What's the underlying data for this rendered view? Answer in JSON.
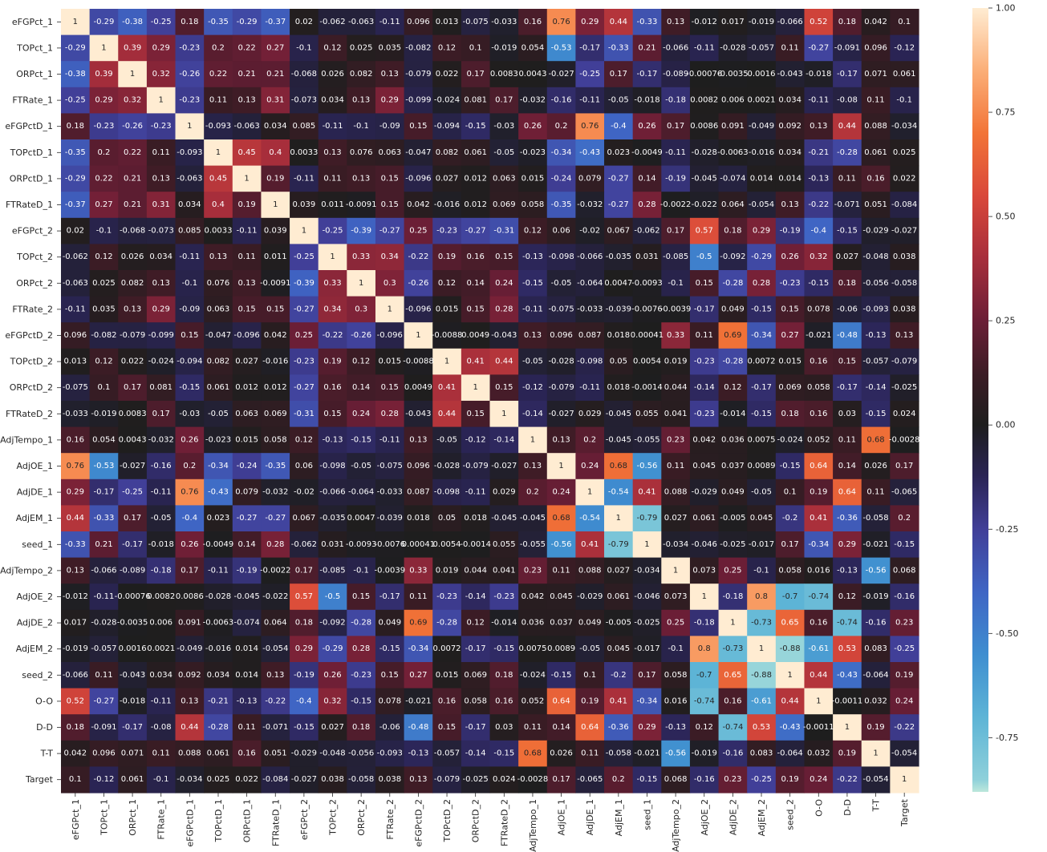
{
  "chart_data": {
    "type": "heatmap",
    "title": "",
    "xlabel": "",
    "ylabel": "",
    "labels": [
      "eFGPct_1",
      "TOPct_1",
      "ORPct_1",
      "FTRate_1",
      "eFGPctD_1",
      "TOPctD_1",
      "ORPctD_1",
      "FTRateD_1",
      "eFGPct_2",
      "TOPct_2",
      "ORPct_2",
      "FTRate_2",
      "eFGPctD_2",
      "TOPctD_2",
      "ORPctD_2",
      "FTRateD_2",
      "AdjTempo_1",
      "AdjOE_1",
      "AdjDE_1",
      "AdjEM_1",
      "seed_1",
      "AdjTempo_2",
      "AdjOE_2",
      "AdjDE_2",
      "AdjEM_2",
      "seed_2",
      "O-O",
      "D-D",
      "T-T",
      "Target"
    ],
    "matrix": [
      [
        "1",
        "-0.29",
        "-0.38",
        "-0.25",
        "0.18",
        "-0.35",
        "-0.29",
        "-0.37",
        "0.02",
        "-0.062",
        "-0.063",
        "-0.11",
        "0.096",
        "0.013",
        "-0.075",
        "-0.033",
        "0.16",
        "0.76",
        "0.29",
        "0.44",
        "-0.33",
        "0.13",
        "-0.012",
        "0.017",
        "-0.019",
        "-0.066",
        "0.52",
        "0.18",
        "0.042",
        "0.1"
      ],
      [
        "-0.29",
        "1",
        "0.39",
        "0.29",
        "-0.23",
        "0.2",
        "0.22",
        "0.27",
        "-0.1",
        "0.12",
        "0.025",
        "0.035",
        "-0.082",
        "0.12",
        "0.1",
        "-0.019",
        "0.054",
        "-0.53",
        "-0.17",
        "-0.33",
        "0.21",
        "-0.066",
        "-0.11",
        "-0.028",
        "-0.057",
        "0.11",
        "-0.27",
        "-0.091",
        "0.096",
        "-0.12"
      ],
      [
        "-0.38",
        "0.39",
        "1",
        "0.32",
        "-0.26",
        "0.22",
        "0.21",
        "0.21",
        "-0.068",
        "0.026",
        "0.082",
        "0.13",
        "-0.079",
        "0.022",
        "0.17",
        "0.0083",
        "0.0043",
        "-0.027",
        "-0.25",
        "0.17",
        "-0.17",
        "-0.089",
        "-0.00076",
        "-0.0035",
        "0.0016",
        "-0.043",
        "-0.018",
        "-0.17",
        "0.071",
        "0.061"
      ],
      [
        "-0.25",
        "0.29",
        "0.32",
        "1",
        "-0.23",
        "0.11",
        "0.13",
        "0.31",
        "-0.073",
        "0.034",
        "0.13",
        "0.29",
        "-0.099",
        "-0.024",
        "0.081",
        "0.17",
        "-0.032",
        "-0.16",
        "-0.11",
        "-0.05",
        "-0.018",
        "-0.18",
        "0.0082",
        "0.006",
        "0.0021",
        "0.034",
        "-0.11",
        "-0.08",
        "0.11",
        "-0.1"
      ],
      [
        "0.18",
        "-0.23",
        "-0.26",
        "-0.23",
        "1",
        "-0.093",
        "-0.063",
        "0.034",
        "0.085",
        "-0.11",
        "-0.1",
        "-0.09",
        "0.15",
        "-0.094",
        "-0.15",
        "-0.03",
        "0.26",
        "0.2",
        "0.76",
        "-0.4",
        "0.26",
        "0.17",
        "0.0086",
        "0.091",
        "-0.049",
        "0.092",
        "0.13",
        "0.44",
        "0.088",
        "-0.034"
      ],
      [
        "-0.35",
        "0.2",
        "0.22",
        "0.11",
        "-0.093",
        "1",
        "0.45",
        "0.4",
        "0.0033",
        "0.13",
        "0.076",
        "0.063",
        "-0.047",
        "0.082",
        "0.061",
        "-0.05",
        "-0.023",
        "-0.34",
        "-0.43",
        "0.023",
        "-0.0049",
        "-0.11",
        "-0.028",
        "-0.0063",
        "-0.016",
        "0.034",
        "-0.21",
        "-0.28",
        "0.061",
        "0.025"
      ],
      [
        "-0.29",
        "0.22",
        "0.21",
        "0.13",
        "-0.063",
        "0.45",
        "1",
        "0.19",
        "-0.11",
        "0.11",
        "0.13",
        "0.15",
        "-0.096",
        "0.027",
        "0.012",
        "0.063",
        "0.015",
        "-0.24",
        "0.079",
        "-0.27",
        "0.14",
        "-0.19",
        "-0.045",
        "-0.074",
        "0.014",
        "0.014",
        "-0.13",
        "0.11",
        "0.16",
        "0.022"
      ],
      [
        "-0.37",
        "0.27",
        "0.21",
        "0.31",
        "0.034",
        "0.4",
        "0.19",
        "1",
        "0.039",
        "0.011",
        "-0.0091",
        "0.15",
        "0.042",
        "-0.016",
        "0.012",
        "0.069",
        "0.058",
        "-0.35",
        "-0.032",
        "-0.27",
        "0.28",
        "-0.0022",
        "-0.022",
        "0.064",
        "-0.054",
        "0.13",
        "-0.22",
        "-0.071",
        "0.051",
        "-0.084"
      ],
      [
        "0.02",
        "-0.1",
        "-0.068",
        "-0.073",
        "0.085",
        "0.0033",
        "-0.11",
        "0.039",
        "1",
        "-0.25",
        "-0.39",
        "-0.27",
        "0.25",
        "-0.23",
        "-0.27",
        "-0.31",
        "0.12",
        "0.06",
        "-0.02",
        "0.067",
        "-0.062",
        "0.17",
        "0.57",
        "0.18",
        "0.29",
        "-0.19",
        "-0.4",
        "-0.15",
        "-0.029",
        "-0.027"
      ],
      [
        "-0.062",
        "0.12",
        "0.026",
        "0.034",
        "-0.11",
        "0.13",
        "0.11",
        "0.011",
        "-0.25",
        "1",
        "0.33",
        "0.34",
        "-0.22",
        "0.19",
        "0.16",
        "0.15",
        "-0.13",
        "-0.098",
        "-0.066",
        "-0.035",
        "0.031",
        "-0.085",
        "-0.5",
        "-0.092",
        "-0.29",
        "0.26",
        "0.32",
        "0.027",
        "-0.048",
        "0.038"
      ],
      [
        "-0.063",
        "0.025",
        "0.082",
        "0.13",
        "-0.1",
        "0.076",
        "0.13",
        "-0.0091",
        "-0.39",
        "0.33",
        "1",
        "0.3",
        "-0.26",
        "0.12",
        "0.14",
        "0.24",
        "-0.15",
        "-0.05",
        "-0.064",
        "0.0047",
        "-0.0093",
        "-0.1",
        "0.15",
        "-0.28",
        "0.28",
        "-0.23",
        "-0.15",
        "0.18",
        "-0.056",
        "-0.058"
      ],
      [
        "-0.11",
        "0.035",
        "0.13",
        "0.29",
        "-0.09",
        "0.063",
        "0.15",
        "0.15",
        "-0.27",
        "0.34",
        "0.3",
        "1",
        "-0.096",
        "0.015",
        "0.15",
        "0.28",
        "-0.11",
        "-0.075",
        "-0.033",
        "-0.039",
        "-0.0076",
        "-0.0039",
        "-0.17",
        "0.049",
        "-0.15",
        "0.15",
        "0.078",
        "-0.06",
        "-0.093",
        "0.038"
      ],
      [
        "0.096",
        "-0.082",
        "-0.079",
        "-0.099",
        "0.15",
        "-0.047",
        "-0.096",
        "0.042",
        "0.25",
        "-0.22",
        "-0.26",
        "-0.096",
        "1",
        "-0.0088",
        "0.0049",
        "-0.043",
        "0.13",
        "0.096",
        "0.087",
        "0.018",
        "0.00041",
        "0.33",
        "0.11",
        "0.69",
        "-0.34",
        "0.27",
        "-0.021",
        "-0.48",
        "-0.13",
        "0.13"
      ],
      [
        "0.013",
        "0.12",
        "0.022",
        "-0.024",
        "-0.094",
        "0.082",
        "0.027",
        "-0.016",
        "-0.23",
        "0.19",
        "0.12",
        "0.015",
        "-0.0088",
        "1",
        "0.41",
        "0.44",
        "-0.05",
        "-0.028",
        "-0.098",
        "0.05",
        "0.0054",
        "0.019",
        "-0.23",
        "-0.28",
        "0.0072",
        "0.015",
        "0.16",
        "0.15",
        "-0.057",
        "-0.079"
      ],
      [
        "-0.075",
        "0.1",
        "0.17",
        "0.081",
        "-0.15",
        "0.061",
        "0.012",
        "0.012",
        "-0.27",
        "0.16",
        "0.14",
        "0.15",
        "0.0049",
        "0.41",
        "1",
        "0.15",
        "-0.12",
        "-0.079",
        "-0.11",
        "0.018",
        "-0.0014",
        "0.044",
        "-0.14",
        "0.12",
        "-0.17",
        "0.069",
        "0.058",
        "-0.17",
        "-0.14",
        "-0.025"
      ],
      [
        "-0.033",
        "-0.019",
        "0.0083",
        "0.17",
        "-0.03",
        "-0.05",
        "0.063",
        "0.069",
        "-0.31",
        "0.15",
        "0.24",
        "0.28",
        "-0.043",
        "0.44",
        "0.15",
        "1",
        "-0.14",
        "-0.027",
        "0.029",
        "-0.045",
        "0.055",
        "0.041",
        "-0.23",
        "-0.014",
        "-0.15",
        "0.18",
        "0.16",
        "0.03",
        "-0.15",
        "0.024"
      ],
      [
        "0.16",
        "0.054",
        "0.0043",
        "-0.032",
        "0.26",
        "-0.023",
        "0.015",
        "0.058",
        "0.12",
        "-0.13",
        "-0.15",
        "-0.11",
        "0.13",
        "-0.05",
        "-0.12",
        "-0.14",
        "1",
        "0.13",
        "0.2",
        "-0.045",
        "-0.055",
        "0.23",
        "0.042",
        "0.036",
        "0.0075",
        "-0.024",
        "0.052",
        "0.11",
        "0.68",
        "-0.0028"
      ],
      [
        "0.76",
        "-0.53",
        "-0.027",
        "-0.16",
        "0.2",
        "-0.34",
        "-0.24",
        "-0.35",
        "0.06",
        "-0.098",
        "-0.05",
        "-0.075",
        "0.096",
        "-0.028",
        "-0.079",
        "-0.027",
        "0.13",
        "1",
        "0.24",
        "0.68",
        "-0.56",
        "0.11",
        "0.045",
        "0.037",
        "0.0089",
        "-0.15",
        "0.64",
        "0.14",
        "0.026",
        "0.17"
      ],
      [
        "0.29",
        "-0.17",
        "-0.25",
        "-0.11",
        "0.76",
        "-0.43",
        "0.079",
        "-0.032",
        "-0.02",
        "-0.066",
        "-0.064",
        "-0.033",
        "0.087",
        "-0.098",
        "-0.11",
        "0.029",
        "0.2",
        "0.24",
        "1",
        "-0.54",
        "0.41",
        "0.088",
        "-0.029",
        "0.049",
        "-0.05",
        "0.1",
        "0.19",
        "0.64",
        "0.11",
        "-0.065"
      ],
      [
        "0.44",
        "-0.33",
        "0.17",
        "-0.05",
        "-0.4",
        "0.023",
        "-0.27",
        "-0.27",
        "0.067",
        "-0.035",
        "0.0047",
        "-0.039",
        "0.018",
        "0.05",
        "0.018",
        "-0.045",
        "-0.045",
        "0.68",
        "-0.54",
        "1",
        "-0.79",
        "0.027",
        "0.061",
        "-0.005",
        "0.045",
        "-0.2",
        "0.41",
        "-0.36",
        "-0.058",
        "0.2"
      ],
      [
        "-0.33",
        "0.21",
        "-0.17",
        "-0.018",
        "0.26",
        "-0.0049",
        "0.14",
        "0.28",
        "-0.062",
        "0.031",
        "-0.0093",
        "-0.0076",
        "0.00041",
        "0.0054",
        "-0.0014",
        "0.055",
        "-0.055",
        "-0.56",
        "0.41",
        "-0.79",
        "1",
        "-0.034",
        "-0.046",
        "-0.025",
        "-0.017",
        "0.17",
        "-0.34",
        "0.29",
        "-0.021",
        "-0.15"
      ],
      [
        "0.13",
        "-0.066",
        "-0.089",
        "-0.18",
        "0.17",
        "-0.11",
        "-0.19",
        "-0.0022",
        "0.17",
        "-0.085",
        "-0.1",
        "-0.0039",
        "0.33",
        "0.019",
        "0.044",
        "0.041",
        "0.23",
        "0.11",
        "0.088",
        "0.027",
        "-0.034",
        "1",
        "0.073",
        "0.25",
        "-0.1",
        "0.058",
        "0.016",
        "-0.13",
        "-0.56",
        "0.068"
      ],
      [
        "-0.012",
        "-0.11",
        "-0.00076",
        "0.0082",
        "0.0086",
        "-0.028",
        "-0.045",
        "-0.022",
        "0.57",
        "-0.5",
        "0.15",
        "-0.17",
        "0.11",
        "-0.23",
        "-0.14",
        "-0.23",
        "0.042",
        "0.045",
        "-0.029",
        "0.061",
        "-0.046",
        "0.073",
        "1",
        "-0.18",
        "0.8",
        "-0.7",
        "-0.74",
        "0.12",
        "-0.019",
        "-0.16"
      ],
      [
        "0.017",
        "-0.028",
        "-0.0035",
        "0.006",
        "0.091",
        "-0.0063",
        "-0.074",
        "0.064",
        "0.18",
        "-0.092",
        "-0.28",
        "0.049",
        "0.69",
        "-0.28",
        "0.12",
        "-0.014",
        "0.036",
        "0.037",
        "0.049",
        "-0.005",
        "-0.025",
        "0.25",
        "-0.18",
        "1",
        "-0.73",
        "0.65",
        "0.16",
        "-0.74",
        "-0.16",
        "0.23"
      ],
      [
        "-0.019",
        "-0.057",
        "0.0016",
        "0.0021",
        "-0.049",
        "-0.016",
        "0.014",
        "-0.054",
        "0.29",
        "-0.29",
        "0.28",
        "-0.15",
        "-0.34",
        "0.0072",
        "-0.17",
        "-0.15",
        "0.0075",
        "0.0089",
        "-0.05",
        "0.045",
        "-0.017",
        "-0.1",
        "0.8",
        "-0.73",
        "1",
        "-0.88",
        "-0.61",
        "0.53",
        "0.083",
        "-0.25"
      ],
      [
        "-0.066",
        "0.11",
        "-0.043",
        "0.034",
        "0.092",
        "0.034",
        "0.014",
        "0.13",
        "-0.19",
        "0.26",
        "-0.23",
        "0.15",
        "0.27",
        "0.015",
        "0.069",
        "0.18",
        "-0.024",
        "-0.15",
        "0.1",
        "-0.2",
        "0.17",
        "0.058",
        "-0.7",
        "0.65",
        "-0.88",
        "1",
        "0.44",
        "-0.43",
        "-0.064",
        "0.19"
      ],
      [
        "0.52",
        "-0.27",
        "-0.018",
        "-0.11",
        "0.13",
        "-0.21",
        "-0.13",
        "-0.22",
        "-0.4",
        "0.32",
        "-0.15",
        "0.078",
        "-0.021",
        "0.16",
        "0.058",
        "0.16",
        "0.052",
        "0.64",
        "0.19",
        "0.41",
        "-0.34",
        "0.016",
        "-0.74",
        "0.16",
        "-0.61",
        "0.44",
        "1",
        "-0.0011",
        "0.032",
        "0.24"
      ],
      [
        "0.18",
        "-0.091",
        "-0.17",
        "-0.08",
        "0.44",
        "-0.28",
        "0.11",
        "-0.071",
        "-0.15",
        "0.027",
        "0.18",
        "-0.06",
        "-0.48",
        "0.15",
        "-0.17",
        "0.03",
        "0.11",
        "0.14",
        "0.64",
        "-0.36",
        "0.29",
        "-0.13",
        "0.12",
        "-0.74",
        "0.53",
        "-0.43",
        "-0.0011",
        "1",
        "0.19",
        "-0.22"
      ],
      [
        "0.042",
        "0.096",
        "0.071",
        "0.11",
        "0.088",
        "0.061",
        "0.16",
        "0.051",
        "-0.029",
        "-0.048",
        "-0.056",
        "-0.093",
        "-0.13",
        "-0.057",
        "-0.14",
        "-0.15",
        "0.68",
        "0.026",
        "0.11",
        "-0.058",
        "-0.021",
        "-0.56",
        "-0.019",
        "-0.16",
        "0.083",
        "-0.064",
        "0.032",
        "0.19",
        "1",
        "-0.054"
      ],
      [
        "0.1",
        "-0.12",
        "0.061",
        "-0.1",
        "-0.034",
        "0.025",
        "0.022",
        "-0.084",
        "-0.027",
        "0.038",
        "-0.058",
        "0.038",
        "0.13",
        "-0.079",
        "-0.025",
        "0.024",
        "-0.0028",
        "0.17",
        "-0.065",
        "0.2",
        "-0.15",
        "0.068",
        "-0.16",
        "0.23",
        "-0.25",
        "0.19",
        "0.24",
        "-0.22",
        "-0.054",
        "1"
      ]
    ],
    "vmin": -0.88,
    "vmax": 1.0,
    "colormap": "icefire",
    "colorbar_ticks": [
      "1.00",
      "0.75",
      "0.50",
      "0.25",
      "0.00",
      "-0.25",
      "-0.50",
      "-0.75"
    ],
    "colorbar_tick_values": [
      1.0,
      0.75,
      0.5,
      0.25,
      0.0,
      -0.25,
      -0.5,
      -0.75
    ],
    "colormap_stops": [
      {
        "v": -1.0,
        "c": "#bde7db"
      },
      {
        "v": -0.85,
        "c": "#8ed0da"
      },
      {
        "v": -0.7,
        "c": "#5db4d6"
      },
      {
        "v": -0.55,
        "c": "#3f8ed0"
      },
      {
        "v": -0.4,
        "c": "#3f65c4"
      },
      {
        "v": -0.25,
        "c": "#413f98"
      },
      {
        "v": -0.12,
        "c": "#2a2454"
      },
      {
        "v": 0.0,
        "c": "#1e1e1e"
      },
      {
        "v": 0.12,
        "c": "#3b1c25"
      },
      {
        "v": 0.25,
        "c": "#6b1e36"
      },
      {
        "v": 0.4,
        "c": "#a72e3b"
      },
      {
        "v": 0.55,
        "c": "#d9483a"
      },
      {
        "v": 0.7,
        "c": "#f27437"
      },
      {
        "v": 0.85,
        "c": "#fbae77"
      },
      {
        "v": 1.0,
        "c": "#ffecd2"
      }
    ]
  }
}
